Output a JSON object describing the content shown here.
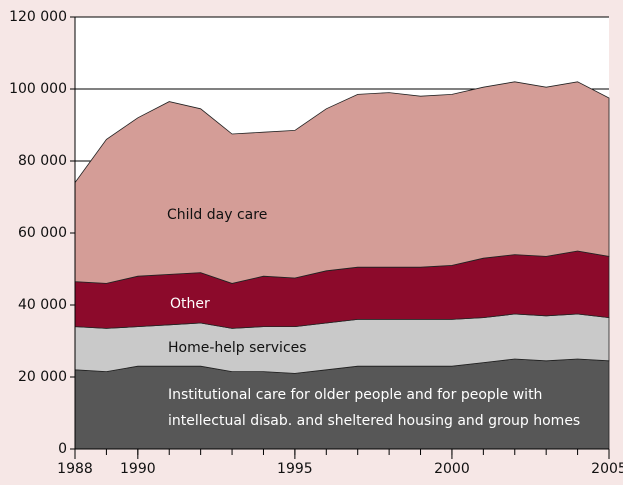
{
  "chart_data": {
    "type": "stacked_area",
    "x": [
      1988,
      1989,
      1990,
      1991,
      1992,
      1993,
      1994,
      1995,
      1996,
      1997,
      1998,
      1999,
      2000,
      2001,
      2002,
      2003,
      2004,
      2005
    ],
    "xlim": [
      1988,
      2005
    ],
    "xticks": [
      1988,
      1990,
      1995,
      2000,
      2005
    ],
    "ylim": [
      0,
      120000
    ],
    "yticks": [
      0,
      {
        "value": 20000,
        "label": "20 000"
      },
      {
        "value": 40000,
        "label": "40 000"
      },
      {
        "value": 60000,
        "label": "60 000"
      },
      {
        "value": 80000,
        "label": "80 000"
      },
      {
        "value": 100000,
        "label": "100 000"
      },
      {
        "value": 120000,
        "label": "120 000"
      }
    ],
    "grid": true,
    "series": [
      {
        "name": "Institutional care for older people and for people with intellectual disab. and sheltered housing and group homes",
        "color": "#575757",
        "values": [
          22000,
          21500,
          23000,
          23000,
          23000,
          21500,
          21500,
          21000,
          22000,
          23000,
          23000,
          23000,
          23000,
          24000,
          25000,
          24500,
          25000,
          24500
        ]
      },
      {
        "name": "Home-help services",
        "color": "#c9c9c9",
        "values": [
          12000,
          12000,
          11000,
          11500,
          12000,
          12000,
          12500,
          13000,
          13000,
          13000,
          13000,
          13000,
          13000,
          12500,
          12500,
          12500,
          12500,
          12000
        ]
      },
      {
        "name": "Other",
        "color": "#8c0a2b",
        "values": [
          12500,
          12500,
          14000,
          14000,
          14000,
          12500,
          14000,
          13500,
          14500,
          14500,
          14500,
          14500,
          15000,
          16500,
          16500,
          16500,
          17500,
          17000
        ]
      },
      {
        "name": "Child day care",
        "color": "#d49d97",
        "values": [
          27500,
          40000,
          44000,
          48000,
          45500,
          41500,
          40000,
          41000,
          45000,
          48000,
          48500,
          47500,
          47500,
          47500,
          48000,
          47000,
          47000,
          44000
        ]
      }
    ]
  }
}
